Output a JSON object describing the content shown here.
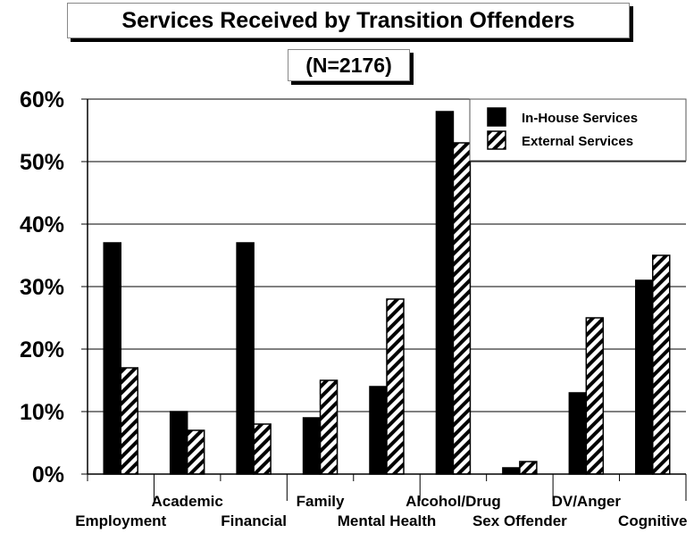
{
  "chart_data": {
    "type": "bar",
    "title": "Services Received by Transition Offenders",
    "subtitle": "(N=2176)",
    "categories": [
      "Employment",
      "Academic",
      "Financial",
      "Family",
      "Mental Health",
      "Alcohol/Drug",
      "Sex Offender",
      "DV/Anger",
      "Cognitive"
    ],
    "series": [
      {
        "name": "In-House Services",
        "values": [
          37,
          10,
          37,
          9,
          14,
          58,
          1,
          13,
          31
        ],
        "fill": "solid",
        "color": "#000000"
      },
      {
        "name": "External Services",
        "values": [
          17,
          7,
          8,
          15,
          28,
          53,
          2,
          25,
          35
        ],
        "fill": "hatched",
        "color": "#000000"
      }
    ],
    "ylim": [
      0,
      60
    ],
    "yticks": [
      "0%",
      "10%",
      "20%",
      "30%",
      "40%",
      "50%",
      "60%"
    ],
    "grid": true,
    "legend_position": "top-right"
  }
}
